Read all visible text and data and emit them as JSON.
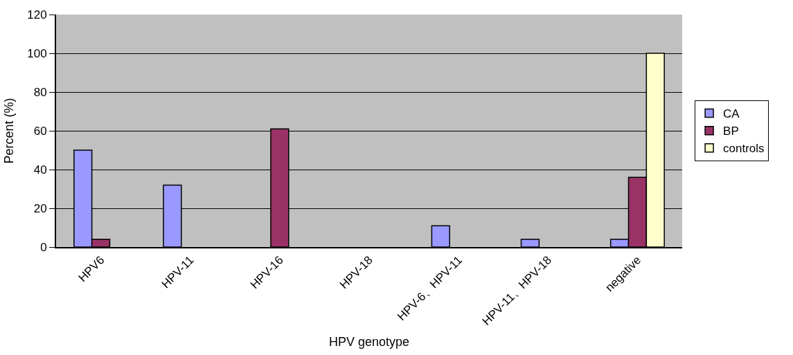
{
  "chart_data": {
    "type": "bar",
    "xlabel": "HPV genotype",
    "ylabel": "Percent (%)",
    "categories": [
      "HPV6",
      "HPV-11",
      "HPV-16",
      "HPV-18",
      "HPV-6、HPV-11",
      "HPV-11、HPV-18",
      "negative"
    ],
    "series": [
      {
        "name": "CA",
        "color": "#9999ff",
        "values": [
          50,
          32,
          null,
          null,
          11,
          4,
          4
        ]
      },
      {
        "name": "BP",
        "color": "#993366",
        "values": [
          4,
          null,
          61,
          null,
          null,
          null,
          36
        ]
      },
      {
        "name": "controls",
        "color": "#ffffcc",
        "values": [
          null,
          null,
          null,
          null,
          null,
          null,
          100
        ]
      }
    ],
    "ylim": [
      0,
      120
    ],
    "yticks": [
      0,
      20,
      40,
      60,
      80,
      100,
      120
    ],
    "grid": "y",
    "legend": "right"
  }
}
